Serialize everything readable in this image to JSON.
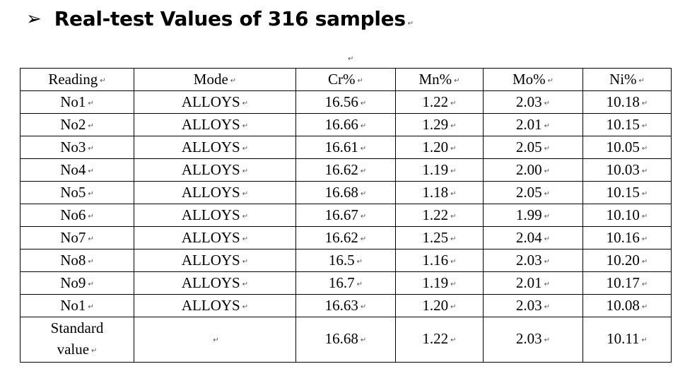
{
  "heading": {
    "bullet": "➢",
    "title": "Real-test Values of 316 samples",
    "para_mark": "↵"
  },
  "spacer_mark": "↵",
  "para_mark": "↵",
  "table": {
    "headers": [
      "Reading",
      "Mode",
      "Cr%",
      "Mn%",
      "Mo%",
      "Ni%"
    ],
    "rows": [
      [
        "No1",
        "ALLOYS",
        "16.56",
        "1.22",
        "2.03",
        "10.18"
      ],
      [
        "No2",
        "ALLOYS",
        "16.66",
        "1.29",
        "2.01",
        "10.15"
      ],
      [
        "No3",
        "ALLOYS",
        "16.61",
        "1.20",
        "2.05",
        "10.05"
      ],
      [
        "No4",
        "ALLOYS",
        "16.62",
        "1.19",
        "2.00",
        "10.03"
      ],
      [
        "No5",
        "ALLOYS",
        "16.68",
        "1.18",
        "2.05",
        "10.15"
      ],
      [
        "No6",
        "ALLOYS",
        "16.67",
        "1.22",
        "1.99",
        "10.10"
      ],
      [
        "No7",
        "ALLOYS",
        "16.62",
        "1.25",
        "2.04",
        "10.16"
      ],
      [
        "No8",
        "ALLOYS",
        "16.5",
        "1.16",
        "2.03",
        "10.20"
      ],
      [
        "No9",
        "ALLOYS",
        "16.7",
        "1.19",
        "2.01",
        "10.17"
      ],
      [
        "No1",
        "ALLOYS",
        "16.63",
        "1.20",
        "2.03",
        "10.08"
      ]
    ],
    "standard_row": {
      "label_line1": "Standard",
      "label_line2": "value",
      "mode": "",
      "values": [
        "16.68",
        "1.22",
        "2.03",
        "10.11"
      ]
    }
  }
}
